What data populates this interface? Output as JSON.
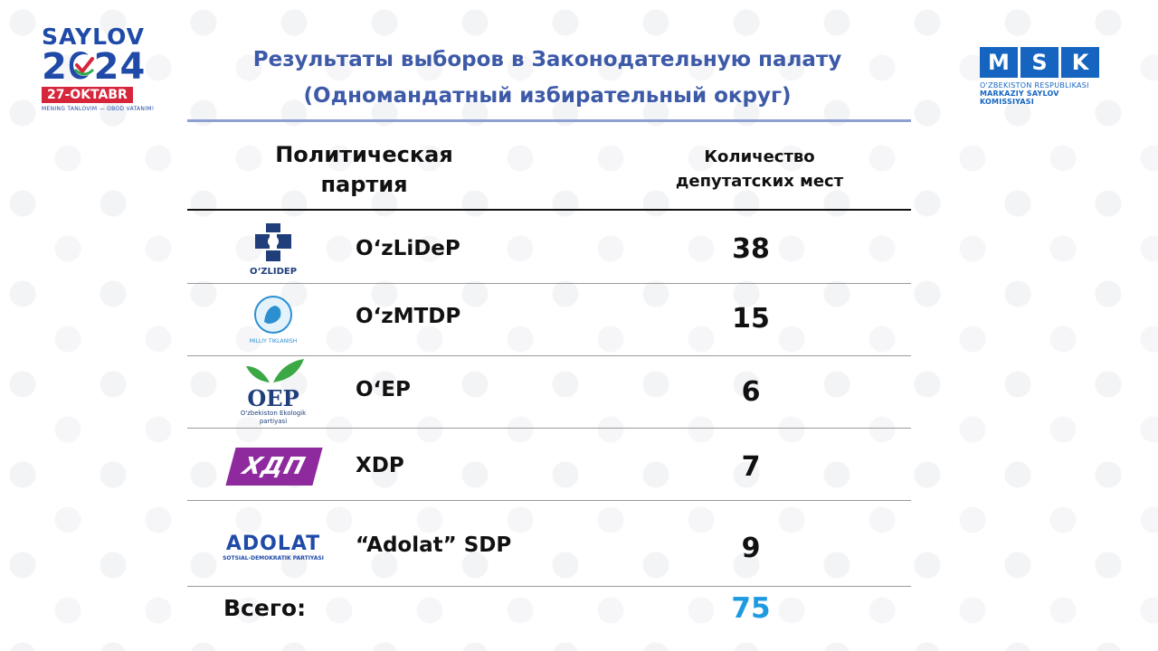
{
  "header": {
    "saylov_logo": {
      "word": "SAYLOV",
      "year": "2024",
      "date": "27-OKTABR",
      "slogan": "MENING TANLOVIM — OBOD VATANIM!"
    },
    "msk_logo": {
      "letters": [
        "M",
        "S",
        "K"
      ],
      "line1": "O'ZBEKISTON RESPUBLIKASI",
      "line2": "MARKAZIY SAYLOV KOMISSIYASI",
      "color": "#1565c0"
    },
    "title_line1": "Результаты выборов в Законодательную палату",
    "title_line2": "(Одномандатный избирательный округ)"
  },
  "table": {
    "col_party": "Политическая партия",
    "col_seats": "Количество депутатских мест",
    "rows": [
      {
        "logo_icon": "ozlidep-logo-icon",
        "logo_caption": "O‘ZLIDEP",
        "name": "O‘zLiDeP",
        "seats": "38"
      },
      {
        "logo_icon": "milliy-tiklanish-logo-icon",
        "logo_caption": "MILLIY TIKLANISH",
        "name": "O‘zMTDP",
        "seats": "15"
      },
      {
        "logo_icon": "oep-logo-icon",
        "logo_text": "OEP",
        "logo_caption": "O'zbekiston Ekologik partiyasi",
        "name": "O‘EP",
        "seats": "6"
      },
      {
        "logo_icon": "xdp-logo-icon",
        "logo_text": "ХДП",
        "name": "XDP",
        "seats": "7"
      },
      {
        "logo_icon": "adolat-logo-icon",
        "logo_text": "ADOLAT",
        "logo_caption": "SOTSIAL-DEMOKRATIK PARTIYASI",
        "name": "“Adolat” SDP",
        "seats": "9"
      }
    ],
    "total_label": "Всего:",
    "total_value": "75"
  },
  "colors": {
    "title": "#3d5aa8",
    "total": "#1e9be0",
    "brand_blue": "#1f4aa8",
    "brand_red": "#d6263b"
  }
}
